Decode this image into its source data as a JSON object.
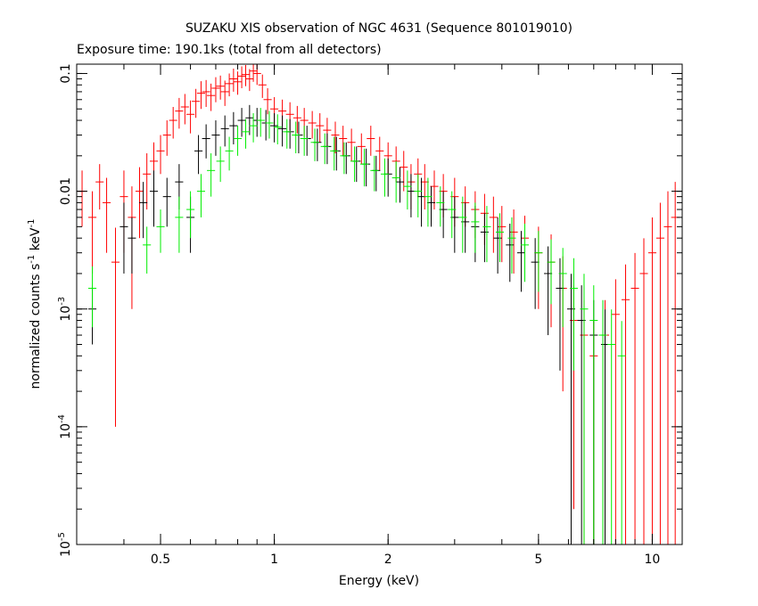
{
  "chart_data": {
    "type": "scatter",
    "title": "SUZAKU XIS observation of NGC 4631 (Sequence 801019010)",
    "subtitle": "Exposure time: 190.1ks (total from all detectors)",
    "xlabel": "Energy (keV)",
    "ylabel_parts": [
      "normalized counts s",
      "-1",
      " keV",
      "-1"
    ],
    "x_scale": "log",
    "y_scale": "log",
    "xlim": [
      0.3,
      12.0
    ],
    "ylim": [
      1e-05,
      0.12
    ],
    "grid": false,
    "x_ticks": [
      {
        "value": 0.5,
        "label": "0.5"
      },
      {
        "value": 1,
        "label": "1"
      },
      {
        "value": 2,
        "label": "2"
      },
      {
        "value": 5,
        "label": "5"
      },
      {
        "value": 10,
        "label": "10"
      }
    ],
    "y_ticks": [
      {
        "value": 1e-05,
        "base": "10",
        "exp": "-5"
      },
      {
        "value": 0.0001,
        "base": "10",
        "exp": "-4"
      },
      {
        "value": 0.001,
        "base": "10",
        "exp": "-3"
      },
      {
        "value": 0.01,
        "base": "0.01",
        "exp": ""
      },
      {
        "value": 0.1,
        "base": "0.1",
        "exp": ""
      }
    ],
    "series": [
      {
        "color": "#ff0000",
        "points": [
          [
            0.31,
            0.01,
            0.005
          ],
          [
            0.33,
            0.006,
            0.004
          ],
          [
            0.345,
            0.012,
            0.005
          ],
          [
            0.36,
            0.008,
            0.005
          ],
          [
            0.38,
            0.0025,
            0.0024
          ],
          [
            0.4,
            0.009,
            0.006
          ],
          [
            0.42,
            0.006,
            0.005
          ],
          [
            0.44,
            0.01,
            0.006
          ],
          [
            0.46,
            0.014,
            0.007
          ],
          [
            0.48,
            0.018,
            0.008
          ],
          [
            0.5,
            0.022,
            0.008
          ],
          [
            0.52,
            0.03,
            0.01
          ],
          [
            0.54,
            0.04,
            0.012
          ],
          [
            0.56,
            0.048,
            0.014
          ],
          [
            0.58,
            0.052,
            0.015
          ],
          [
            0.6,
            0.045,
            0.014
          ],
          [
            0.62,
            0.058,
            0.016
          ],
          [
            0.64,
            0.068,
            0.018
          ],
          [
            0.66,
            0.07,
            0.018
          ],
          [
            0.68,
            0.065,
            0.017
          ],
          [
            0.7,
            0.075,
            0.018
          ],
          [
            0.72,
            0.078,
            0.018
          ],
          [
            0.74,
            0.07,
            0.017
          ],
          [
            0.76,
            0.082,
            0.018
          ],
          [
            0.78,
            0.09,
            0.02
          ],
          [
            0.8,
            0.085,
            0.019
          ],
          [
            0.82,
            0.095,
            0.02
          ],
          [
            0.84,
            0.098,
            0.02
          ],
          [
            0.86,
            0.09,
            0.019
          ],
          [
            0.88,
            0.105,
            0.02
          ],
          [
            0.9,
            0.1,
            0.02
          ],
          [
            0.93,
            0.08,
            0.018
          ],
          [
            0.96,
            0.06,
            0.015
          ],
          [
            1.0,
            0.05,
            0.013
          ],
          [
            1.05,
            0.048,
            0.012
          ],
          [
            1.1,
            0.045,
            0.012
          ],
          [
            1.15,
            0.042,
            0.011
          ],
          [
            1.2,
            0.04,
            0.011
          ],
          [
            1.26,
            0.038,
            0.01
          ],
          [
            1.32,
            0.036,
            0.01
          ],
          [
            1.38,
            0.033,
            0.009
          ],
          [
            1.45,
            0.03,
            0.009
          ],
          [
            1.52,
            0.028,
            0.008
          ],
          [
            1.6,
            0.026,
            0.008
          ],
          [
            1.7,
            0.024,
            0.007
          ],
          [
            1.8,
            0.028,
            0.008
          ],
          [
            1.9,
            0.022,
            0.007
          ],
          [
            2.0,
            0.02,
            0.006
          ],
          [
            2.1,
            0.018,
            0.006
          ],
          [
            2.2,
            0.016,
            0.006
          ],
          [
            2.3,
            0.012,
            0.005
          ],
          [
            2.4,
            0.014,
            0.005
          ],
          [
            2.5,
            0.012,
            0.005
          ],
          [
            2.65,
            0.011,
            0.004
          ],
          [
            2.8,
            0.01,
            0.004
          ],
          [
            3.0,
            0.009,
            0.004
          ],
          [
            3.2,
            0.008,
            0.003
          ],
          [
            3.4,
            0.007,
            0.003
          ],
          [
            3.6,
            0.0065,
            0.003
          ],
          [
            3.8,
            0.006,
            0.003
          ],
          [
            4.0,
            0.005,
            0.0025
          ],
          [
            4.3,
            0.0045,
            0.0025
          ],
          [
            4.6,
            0.004,
            0.0022
          ],
          [
            5.0,
            0.003,
            0.002
          ],
          [
            5.4,
            0.0025,
            0.0018
          ],
          [
            5.8,
            0.0015,
            0.0013
          ],
          [
            6.2,
            0.0008,
            0.00078
          ],
          [
            6.6,
            0.0006,
            0.00059
          ],
          [
            7.0,
            0.0004,
            0.00039
          ],
          [
            7.5,
            0.0006,
            0.00059
          ],
          [
            8.0,
            0.0009,
            0.00089
          ],
          [
            8.5,
            0.0012,
            0.00119
          ],
          [
            9.0,
            0.0015,
            0.00149
          ],
          [
            9.5,
            0.002,
            0.00199
          ],
          [
            10.0,
            0.003,
            0.00299
          ],
          [
            10.5,
            0.004,
            0.00399
          ],
          [
            11.0,
            0.005,
            0.00499
          ],
          [
            11.5,
            0.006,
            0.00599
          ]
        ]
      },
      {
        "color": "#000000",
        "points": [
          [
            0.33,
            0.001,
            0.0005
          ],
          [
            0.4,
            0.005,
            0.003
          ],
          [
            0.42,
            0.004,
            0.002
          ],
          [
            0.45,
            0.008,
            0.004
          ],
          [
            0.48,
            0.01,
            0.005
          ],
          [
            0.52,
            0.009,
            0.004
          ],
          [
            0.56,
            0.012,
            0.005
          ],
          [
            0.6,
            0.006,
            0.003
          ],
          [
            0.63,
            0.022,
            0.008
          ],
          [
            0.66,
            0.028,
            0.009
          ],
          [
            0.7,
            0.03,
            0.01
          ],
          [
            0.74,
            0.034,
            0.01
          ],
          [
            0.78,
            0.036,
            0.011
          ],
          [
            0.82,
            0.04,
            0.011
          ],
          [
            0.86,
            0.042,
            0.012
          ],
          [
            0.9,
            0.04,
            0.011
          ],
          [
            0.95,
            0.038,
            0.011
          ],
          [
            1.0,
            0.036,
            0.01
          ],
          [
            1.05,
            0.034,
            0.01
          ],
          [
            1.1,
            0.032,
            0.009
          ],
          [
            1.16,
            0.03,
            0.009
          ],
          [
            1.22,
            0.028,
            0.008
          ],
          [
            1.3,
            0.026,
            0.008
          ],
          [
            1.38,
            0.024,
            0.007
          ],
          [
            1.46,
            0.022,
            0.007
          ],
          [
            1.55,
            0.02,
            0.006
          ],
          [
            1.65,
            0.018,
            0.006
          ],
          [
            1.75,
            0.017,
            0.006
          ],
          [
            1.86,
            0.015,
            0.005
          ],
          [
            2.0,
            0.014,
            0.005
          ],
          [
            2.15,
            0.012,
            0.004
          ],
          [
            2.3,
            0.01,
            0.004
          ],
          [
            2.45,
            0.009,
            0.004
          ],
          [
            2.6,
            0.008,
            0.003
          ],
          [
            2.8,
            0.007,
            0.003
          ],
          [
            3.0,
            0.006,
            0.003
          ],
          [
            3.2,
            0.0055,
            0.0025
          ],
          [
            3.4,
            0.005,
            0.0025
          ],
          [
            3.6,
            0.0045,
            0.002
          ],
          [
            3.9,
            0.004,
            0.002
          ],
          [
            4.2,
            0.0035,
            0.0018
          ],
          [
            4.5,
            0.003,
            0.0016
          ],
          [
            4.9,
            0.0025,
            0.0015
          ],
          [
            5.3,
            0.002,
            0.0014
          ],
          [
            5.7,
            0.0015,
            0.0012
          ],
          [
            6.1,
            0.001,
            0.00099
          ],
          [
            6.5,
            0.0008,
            0.00079
          ],
          [
            7.0,
            0.0006,
            0.00059
          ],
          [
            7.5,
            0.0005,
            0.00049
          ]
        ]
      },
      {
        "color": "#00ee00",
        "points": [
          [
            0.33,
            0.0015,
            0.0008
          ],
          [
            0.46,
            0.0035,
            0.0015
          ],
          [
            0.5,
            0.005,
            0.002
          ],
          [
            0.56,
            0.006,
            0.003
          ],
          [
            0.6,
            0.007,
            0.003
          ],
          [
            0.64,
            0.01,
            0.004
          ],
          [
            0.68,
            0.015,
            0.006
          ],
          [
            0.72,
            0.018,
            0.006
          ],
          [
            0.76,
            0.022,
            0.007
          ],
          [
            0.8,
            0.028,
            0.008
          ],
          [
            0.84,
            0.032,
            0.009
          ],
          [
            0.88,
            0.036,
            0.01
          ],
          [
            0.92,
            0.04,
            0.011
          ],
          [
            0.97,
            0.038,
            0.01
          ],
          [
            1.02,
            0.035,
            0.01
          ],
          [
            1.08,
            0.032,
            0.009
          ],
          [
            1.14,
            0.03,
            0.009
          ],
          [
            1.2,
            0.028,
            0.008
          ],
          [
            1.28,
            0.026,
            0.008
          ],
          [
            1.36,
            0.024,
            0.007
          ],
          [
            1.44,
            0.022,
            0.007
          ],
          [
            1.53,
            0.02,
            0.006
          ],
          [
            1.63,
            0.018,
            0.006
          ],
          [
            1.73,
            0.017,
            0.006
          ],
          [
            1.84,
            0.015,
            0.005
          ],
          [
            1.96,
            0.014,
            0.005
          ],
          [
            2.1,
            0.013,
            0.005
          ],
          [
            2.25,
            0.011,
            0.004
          ],
          [
            2.4,
            0.01,
            0.004
          ],
          [
            2.55,
            0.009,
            0.004
          ],
          [
            2.75,
            0.008,
            0.003
          ],
          [
            2.95,
            0.007,
            0.003
          ],
          [
            3.15,
            0.006,
            0.003
          ],
          [
            3.4,
            0.0055,
            0.0025
          ],
          [
            3.65,
            0.005,
            0.0025
          ],
          [
            3.95,
            0.0045,
            0.002
          ],
          [
            4.25,
            0.004,
            0.002
          ],
          [
            4.6,
            0.0035,
            0.0018
          ],
          [
            5.0,
            0.003,
            0.0016
          ],
          [
            5.4,
            0.0025,
            0.0014
          ],
          [
            5.8,
            0.002,
            0.0013
          ],
          [
            6.2,
            0.0015,
            0.0012
          ],
          [
            6.6,
            0.001,
            0.00099
          ],
          [
            7.0,
            0.0008,
            0.00079
          ],
          [
            7.4,
            0.0006,
            0.00059
          ],
          [
            7.8,
            0.0005,
            0.00049
          ],
          [
            8.3,
            0.0004,
            0.00039
          ]
        ]
      }
    ]
  }
}
